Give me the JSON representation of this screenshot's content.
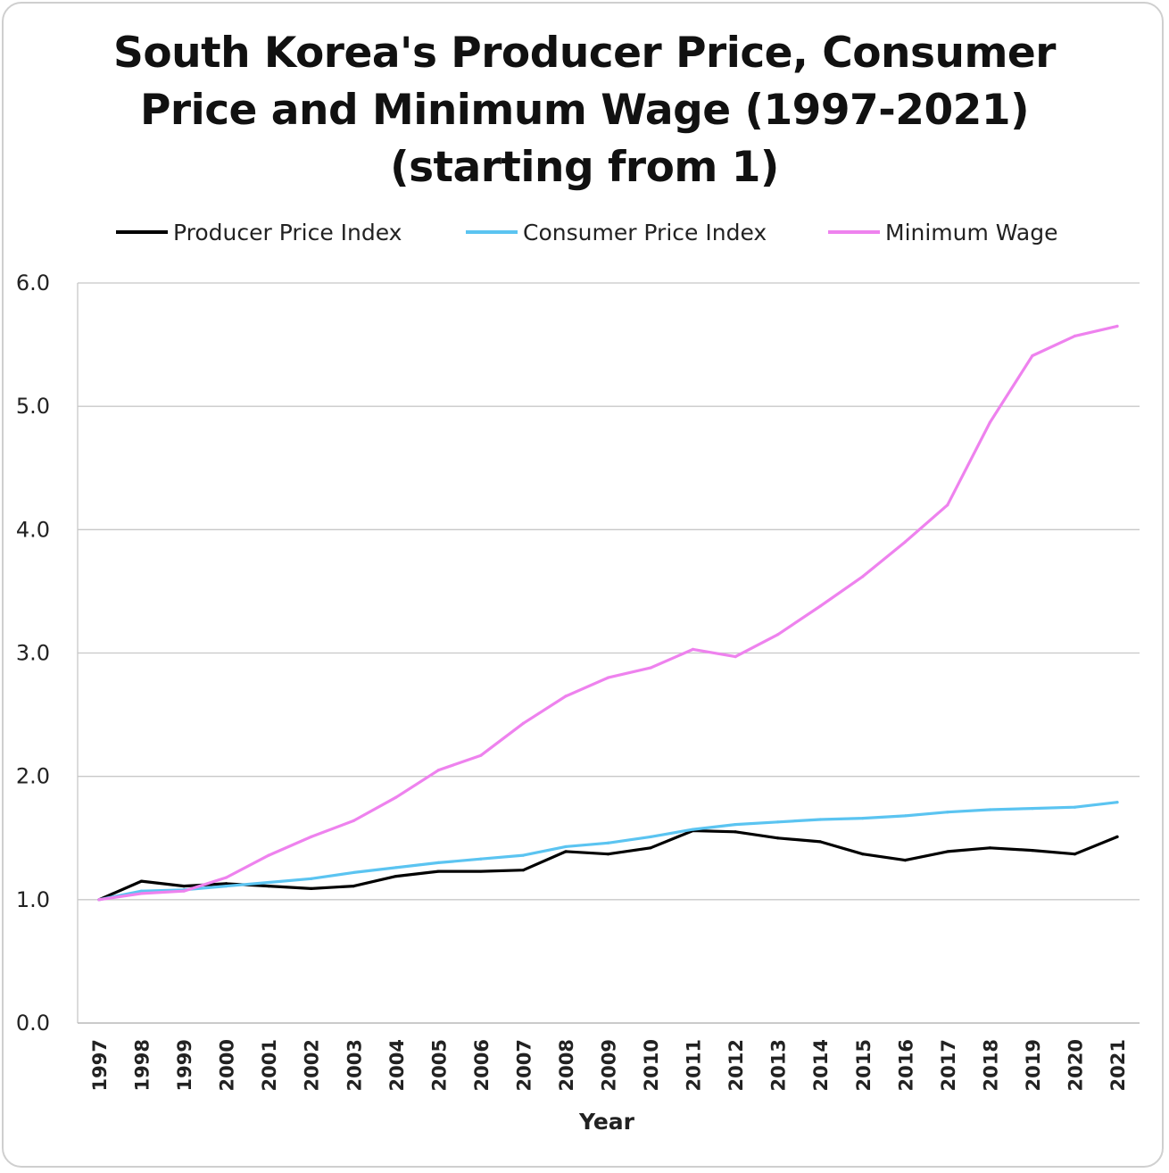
{
  "chart_data": {
    "type": "line",
    "title_lines": [
      "South Korea's Producer Price, Consumer",
      "Price and Minimum Wage (1997-2021)",
      "(starting from 1)"
    ],
    "xlabel": "Year",
    "ylabel": "",
    "ylim": [
      0,
      6
    ],
    "yticks": [
      "0.0",
      "1.0",
      "2.0",
      "3.0",
      "4.0",
      "5.0",
      "6.0"
    ],
    "grid": true,
    "legend_position": "top",
    "categories": [
      "1997",
      "1998",
      "1999",
      "2000",
      "2001",
      "2002",
      "2003",
      "2004",
      "2005",
      "2006",
      "2007",
      "2008",
      "2009",
      "2010",
      "2011",
      "2012",
      "2013",
      "2014",
      "2015",
      "2016",
      "2017",
      "2018",
      "2019",
      "2020",
      "2021"
    ],
    "series": [
      {
        "name": "Producer Price Index",
        "color": "#000000",
        "values": [
          1.0,
          1.15,
          1.11,
          1.13,
          1.11,
          1.09,
          1.11,
          1.19,
          1.23,
          1.23,
          1.24,
          1.39,
          1.37,
          1.42,
          1.56,
          1.55,
          1.5,
          1.47,
          1.37,
          1.32,
          1.39,
          1.42,
          1.4,
          1.37,
          1.51
        ]
      },
      {
        "name": "Consumer Price Index",
        "color": "#5bc4f1",
        "values": [
          1.0,
          1.07,
          1.08,
          1.11,
          1.14,
          1.17,
          1.22,
          1.26,
          1.3,
          1.33,
          1.36,
          1.43,
          1.46,
          1.51,
          1.57,
          1.61,
          1.63,
          1.65,
          1.66,
          1.68,
          1.71,
          1.73,
          1.74,
          1.75,
          1.79
        ]
      },
      {
        "name": "Minimum Wage",
        "color": "#ee82ee",
        "values": [
          1.0,
          1.05,
          1.07,
          1.18,
          1.36,
          1.51,
          1.64,
          1.83,
          2.05,
          2.17,
          2.43,
          2.65,
          2.8,
          2.88,
          3.03,
          2.97,
          3.15,
          3.38,
          3.62,
          3.9,
          4.2,
          4.87,
          5.41,
          5.57,
          5.65
        ]
      }
    ]
  }
}
